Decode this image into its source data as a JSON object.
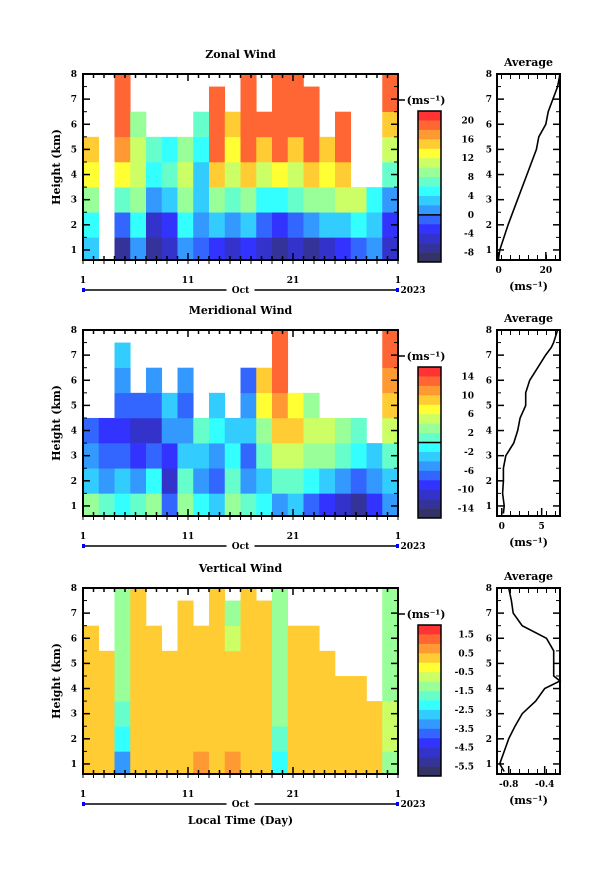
{
  "chart_data": {
    "type": "heatmap",
    "colormap": [
      "#ff3333",
      "#ff6633",
      "#ff9933",
      "#ffcc33",
      "#ffff33",
      "#ccff66",
      "#99ff99",
      "#66ffcc",
      "#33ffff",
      "#33ccff",
      "#3399ff",
      "#3366ff",
      "#3333ff",
      "#3333cc",
      "#333399",
      "#333366"
    ],
    "x_ticks": [
      "1",
      "11",
      "21",
      "1"
    ],
    "x_tick_days": [
      1,
      11,
      21,
      31
    ],
    "xlim": [
      1,
      31
    ],
    "month_label": "Oct",
    "year_label": "2023",
    "xlabel": "Local Time (Day)",
    "ylabel": "Height (km)",
    "ylim": [
      0.6,
      8
    ],
    "y_ticks": [
      "1",
      "2",
      "3",
      "4",
      "5",
      "6",
      "7",
      "8"
    ],
    "unit_label": "(ms⁻¹)",
    "heights": [
      1,
      2,
      3,
      4,
      5,
      6,
      7,
      8
    ],
    "panels": [
      {
        "title": "Zonal Wind",
        "colorbar": {
          "top": 22,
          "step": 2,
          "labels": [
            "20",
            "16",
            "12",
            "8",
            "4",
            "0",
            "-4",
            "-8"
          ],
          "zero_boundary": 11
        },
        "grid": [
          [
            4,
            6,
            10,
            14,
            16,
            null,
            null,
            null
          ],
          [
            null,
            null,
            null,
            null,
            null,
            null,
            null,
            null
          ],
          [
            -6,
            0,
            8,
            14,
            18,
            20,
            20,
            20
          ],
          [
            2,
            6,
            10,
            12,
            12,
            10,
            null,
            null
          ],
          [
            -6,
            -4,
            2,
            6,
            8,
            null,
            null,
            null
          ],
          [
            -4,
            -2,
            4,
            8,
            6,
            null,
            null,
            null
          ],
          [
            2,
            6,
            10,
            12,
            10,
            null,
            null,
            null
          ],
          [
            0,
            2,
            4,
            4,
            6,
            8,
            null,
            null
          ],
          [
            -2,
            4,
            10,
            16,
            20,
            20,
            20,
            null
          ],
          [
            -4,
            2,
            8,
            12,
            14,
            16,
            null,
            null
          ],
          [
            -2,
            4,
            10,
            16,
            20,
            20,
            20,
            20
          ],
          [
            -4,
            0,
            6,
            12,
            16,
            20,
            null,
            null
          ],
          [
            -6,
            -2,
            6,
            14,
            20,
            20,
            20,
            20
          ],
          [
            -4,
            0,
            8,
            12,
            16,
            20,
            20,
            20
          ],
          [
            -6,
            2,
            10,
            16,
            20,
            20,
            20,
            null
          ],
          [
            -4,
            4,
            10,
            14,
            16,
            null,
            null,
            null
          ],
          [
            -2,
            4,
            12,
            16,
            20,
            20,
            null,
            null
          ],
          [
            0,
            6,
            12,
            null,
            null,
            null,
            null,
            null
          ],
          [
            2,
            4,
            6,
            null,
            null,
            null,
            null,
            null
          ],
          [
            -4,
            -2,
            2,
            8,
            12,
            16,
            20,
            20
          ]
        ],
        "profile": {
          "title": "Average",
          "xlabel": "(ms⁻¹)",
          "xlim": [
            -0.7,
            26
          ],
          "x_ticks": [
            0,
            20
          ],
          "x_tick_labels": [
            "0",
            "20"
          ],
          "heights": [
            0.7,
            1,
            2,
            2.5,
            3,
            4,
            5,
            5.5,
            6,
            6.5,
            7,
            7.5,
            8
          ],
          "values": [
            0,
            0.5,
            4,
            6,
            8,
            12,
            16,
            17,
            20,
            21,
            23,
            25,
            26
          ]
        }
      },
      {
        "title": "Meridional Wind",
        "colorbar": {
          "top": 16,
          "step": 2,
          "labels": [
            "14",
            "10",
            "6",
            "2",
            "-2",
            "-6",
            "-10",
            "-14"
          ],
          "zero_boundary": 8
        },
        "grid": [
          [
            4,
            -2,
            -4,
            -6,
            null,
            null,
            null,
            null
          ],
          [
            2,
            -4,
            -6,
            -8,
            null,
            null,
            null,
            null
          ],
          [
            0,
            -2,
            -6,
            -8,
            -6,
            -4,
            -2,
            null
          ],
          [
            2,
            -4,
            -8,
            -10,
            -6,
            null,
            null,
            null
          ],
          [
            4,
            0,
            -6,
            -10,
            -6,
            -4,
            null,
            null
          ],
          [
            -6,
            -10,
            -8,
            -4,
            -2,
            null,
            null,
            null
          ],
          [
            4,
            2,
            -2,
            -4,
            -6,
            -4,
            null,
            null
          ],
          [
            0,
            -4,
            -2,
            2,
            null,
            null,
            null,
            null
          ],
          [
            -2,
            -6,
            -4,
            0,
            -2,
            null,
            null,
            null
          ],
          [
            4,
            2,
            0,
            -2,
            null,
            null,
            null,
            null
          ],
          [
            2,
            -4,
            -6,
            -2,
            -4,
            -6,
            null,
            null
          ],
          [
            0,
            -2,
            2,
            4,
            8,
            10,
            null,
            null
          ],
          [
            -4,
            2,
            6,
            10,
            12,
            14,
            14,
            14
          ],
          [
            -2,
            2,
            6,
            10,
            8,
            null,
            null,
            null
          ],
          [
            -6,
            0,
            4,
            6,
            4,
            null,
            null,
            null
          ],
          [
            -8,
            -2,
            4,
            6,
            null,
            null,
            null,
            null
          ],
          [
            -10,
            -4,
            2,
            4,
            null,
            null,
            null,
            null
          ],
          [
            -12,
            -6,
            0,
            2,
            null,
            null,
            null,
            null
          ],
          [
            -8,
            -4,
            -2,
            null,
            null,
            null,
            null,
            null
          ],
          [
            -4,
            -2,
            2,
            6,
            10,
            12,
            14,
            14
          ]
        ],
        "profile": {
          "title": "Average",
          "xlabel": "(ms⁻¹)",
          "xlim": [
            -0.6,
            7.3
          ],
          "x_ticks": [
            0,
            5
          ],
          "x_tick_labels": [
            "0",
            "5"
          ],
          "heights": [
            0.7,
            1,
            1.5,
            2,
            2.5,
            3,
            3.5,
            4,
            4.5,
            5,
            5.5,
            6,
            6.5,
            7,
            7.3,
            7.5,
            8
          ],
          "values": [
            0.2,
            0.3,
            0.1,
            0.2,
            0.2,
            0.5,
            1.5,
            2,
            2.3,
            3,
            3,
            3.5,
            4.5,
            5.5,
            6.2,
            6.5,
            7
          ]
        }
      },
      {
        "title": "Vertical Wind",
        "colorbar": {
          "top": 2,
          "step": 0.5,
          "labels": [
            "1.5",
            "0.5",
            "-0.5",
            "-1.5",
            "-2.5",
            "-3.5",
            "-4.5",
            "-5.5"
          ],
          "zero_boundary": null
        },
        "grid": [
          [
            0.5,
            0.5,
            0.5,
            0.5,
            0.5,
            0.5,
            null,
            null
          ],
          [
            0.5,
            0.5,
            0.5,
            0.5,
            0.5,
            null,
            null,
            null
          ],
          [
            -3,
            -2,
            -1.5,
            -1,
            -1,
            -1,
            -1,
            -1
          ],
          [
            0.5,
            0.5,
            0.5,
            0.5,
            0.5,
            0.5,
            0.5,
            0.5
          ],
          [
            0.5,
            0.5,
            0.5,
            0.5,
            0.5,
            0.5,
            null,
            null
          ],
          [
            0.5,
            0.5,
            0.5,
            0.5,
            0.5,
            null,
            null,
            null
          ],
          [
            0.5,
            0.5,
            0.5,
            0.5,
            0.5,
            0.5,
            0.5,
            null
          ],
          [
            1,
            0.5,
            0.5,
            0.5,
            0.5,
            0.5,
            null,
            null
          ],
          [
            0.5,
            0.5,
            0.5,
            0.5,
            0.5,
            0.5,
            0.5,
            0.5
          ],
          [
            1,
            0.5,
            0.5,
            0.5,
            0.5,
            -0.5,
            -1,
            null
          ],
          [
            0.5,
            0.5,
            0.5,
            0.5,
            0.5,
            0.5,
            0.5,
            0.5
          ],
          [
            0.5,
            0.5,
            0.5,
            0.5,
            0.5,
            0.5,
            0.5,
            null
          ],
          [
            -2,
            -1.5,
            -1,
            -1,
            -1,
            -1,
            -1,
            -1
          ],
          [
            0.5,
            0.5,
            0.5,
            0.5,
            0.5,
            0.5,
            null,
            null
          ],
          [
            0.5,
            0.5,
            0.5,
            0.5,
            0.5,
            0.5,
            null,
            null
          ],
          [
            0.5,
            0.5,
            0.5,
            0.5,
            0.5,
            null,
            null,
            null
          ],
          [
            0.5,
            0.5,
            0.5,
            0.5,
            null,
            null,
            null,
            null
          ],
          [
            0.5,
            0.5,
            0.5,
            0.5,
            null,
            null,
            null,
            null
          ],
          [
            0.5,
            0.5,
            0.5,
            null,
            null,
            null,
            null,
            null
          ],
          [
            -1,
            -0.5,
            -0.5,
            -1,
            -1,
            -1,
            -1,
            -1
          ]
        ],
        "profile": {
          "title": "Average",
          "xlabel": "(ms⁻¹)",
          "xlim": [
            -0.93,
            -0.23
          ],
          "x_ticks": [
            -0.8,
            -0.4
          ],
          "x_tick_labels": [
            "-0.8",
            "-0.4"
          ],
          "heights": [
            0.7,
            1,
            1.5,
            2,
            2.5,
            3,
            3.5,
            4,
            4.3,
            4.5,
            5,
            5.5,
            6,
            6.5,
            7,
            7.5,
            8
          ],
          "values": [
            -0.85,
            -0.9,
            -0.85,
            -0.8,
            -0.73,
            -0.65,
            -0.5,
            -0.4,
            -0.23,
            -0.3,
            -0.3,
            -0.3,
            -0.38,
            -0.65,
            -0.75,
            -0.77,
            -0.8
          ]
        }
      }
    ]
  }
}
